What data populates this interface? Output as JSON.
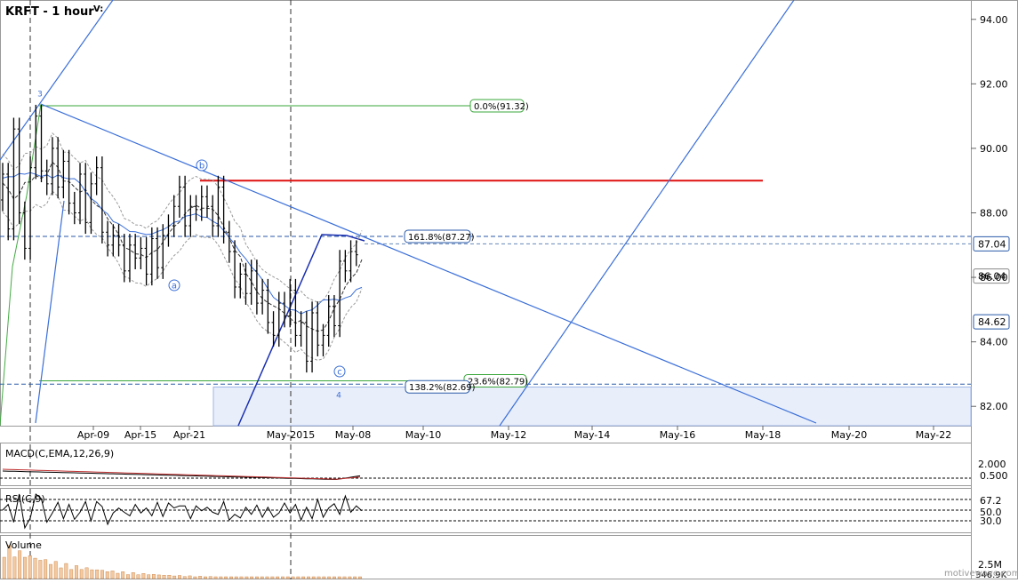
{
  "chart_data": {
    "type": "candlestick",
    "title": "KRFT - 1 hour",
    "title_suffix": "V:",
    "watermark": "motivewave.com",
    "x_axis": {
      "tick_labels": [
        "Apr-09",
        "Apr-15",
        "Apr-21",
        "May-2015",
        "May-08",
        "May-10",
        "May-12",
        "May-14",
        "May-16",
        "May-18",
        "May-20",
        "May-22"
      ]
    },
    "y_axis": {
      "ylim": [
        81.4,
        94.6
      ],
      "tick_labels": [
        "94.00",
        "92.00",
        "90.00",
        "88.00",
        "86.00",
        "84.00",
        "82.00"
      ],
      "tick_values": [
        94,
        92,
        90,
        88,
        86,
        84,
        82
      ]
    },
    "price_markers": [
      {
        "label": "87.04",
        "value": 87.04
      },
      {
        "label": "86.04",
        "value": 86.04
      },
      {
        "label": "84.62",
        "value": 84.62
      }
    ],
    "fibonacci_labels": [
      {
        "label": "0.0%(91.32)",
        "value": 91.32
      },
      {
        "label": "161.8%(87.27)",
        "value": 87.27
      },
      {
        "label": "23.6%(82.79)",
        "value": 82.79
      },
      {
        "label": "138.2%(82.69)",
        "value": 82.69
      }
    ],
    "resistance_level": 89.0,
    "wave_labels": [
      "3",
      "b",
      "a",
      "c",
      "4"
    ],
    "price_series": {
      "start": "Apr-03",
      "end": "May-08",
      "close_path": [
        88.4,
        89.2,
        87.5,
        90.6,
        88.0,
        86.9,
        89.4,
        91.0,
        89.3,
        88.9,
        90.0,
        88.8,
        89.6,
        88.3,
        88.0,
        89.2,
        87.7,
        88.9,
        89.4,
        87.4,
        87.0,
        87.3,
        87.0,
        86.2,
        87.0,
        86.6,
        86.9,
        86.1,
        87.2,
        86.3,
        87.3,
        87.6,
        88.2,
        88.8,
        87.6,
        88.2,
        88.1,
        88.5,
        88.2,
        87.6,
        88.8,
        87.4,
        86.8,
        85.7,
        86.1,
        85.5,
        86.2,
        85.2,
        85.6,
        84.6,
        84.2,
        85.2,
        84.8,
        85.6,
        84.2,
        84.6,
        83.4,
        84.9,
        83.9,
        84.2,
        85.1,
        84.5,
        86.5,
        86.2,
        86.8,
        86.7
      ]
    },
    "indicators": {
      "macd": {
        "label": "MACD(C,EMA,12,26,9)",
        "ticks": [
          {
            "label": "2.000",
            "value": 2.0
          },
          {
            "label": "0.500",
            "value": 0.5
          }
        ]
      },
      "rsi": {
        "label": "RSI(C,9)",
        "ticks": [
          {
            "label": "67.2",
            "value": 67.2
          },
          {
            "label": "50.0",
            "value": 50.0
          },
          {
            "label": "30.0",
            "value": 30.0
          }
        ]
      },
      "volume": {
        "label": "Volume",
        "ticks": [
          {
            "label": "2.5M",
            "value": 2.5
          },
          {
            "label": "346.9K",
            "value": 0.3469
          }
        ]
      }
    }
  }
}
